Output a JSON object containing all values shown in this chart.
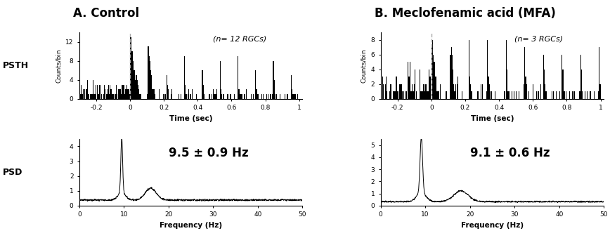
{
  "panel_A_title": "A. Control",
  "panel_B_title": "B. Meclofenamic acid (MFA)",
  "psth_A_label": "(n= 12 RGCs)",
  "psth_B_label": "(n= 3 RGCs)",
  "psd_A_text": "9.5 ± 0.9 Hz",
  "psd_B_text": "9.1 ± 0.6 Hz",
  "psth_xlabel": "Time (sec)",
  "psth_ylabel": "Counts/bin",
  "psd_xlabel": "Frequency (Hz)",
  "psth_A_ylim": [
    0,
    14
  ],
  "psth_A_yticks": [
    0,
    4,
    8,
    12
  ],
  "psth_B_ylim": [
    0,
    9
  ],
  "psth_B_yticks": [
    0,
    2,
    4,
    6,
    8
  ],
  "psth_xlim": [
    -0.3,
    1.02
  ],
  "psth_xticks": [
    -0.2,
    0,
    0.2,
    0.4,
    0.6,
    0.8,
    1.0
  ],
  "psd_xlim": [
    0,
    50
  ],
  "psd_xticks": [
    0,
    10,
    20,
    30,
    40,
    50
  ],
  "psd_A_ylim": [
    0,
    4.5
  ],
  "psd_A_yticks": [
    0,
    1,
    2,
    3,
    4
  ],
  "psd_B_ylim": [
    0,
    5.5
  ],
  "psd_B_yticks": [
    0,
    1,
    2,
    3,
    4,
    5
  ],
  "side_label_PSTH": "PSTH",
  "side_label_PSD": "PSD",
  "background_color": "#ffffff",
  "bar_color": "#000000",
  "line_color": "#000000",
  "dashed_line_color": "#aaaaaa"
}
